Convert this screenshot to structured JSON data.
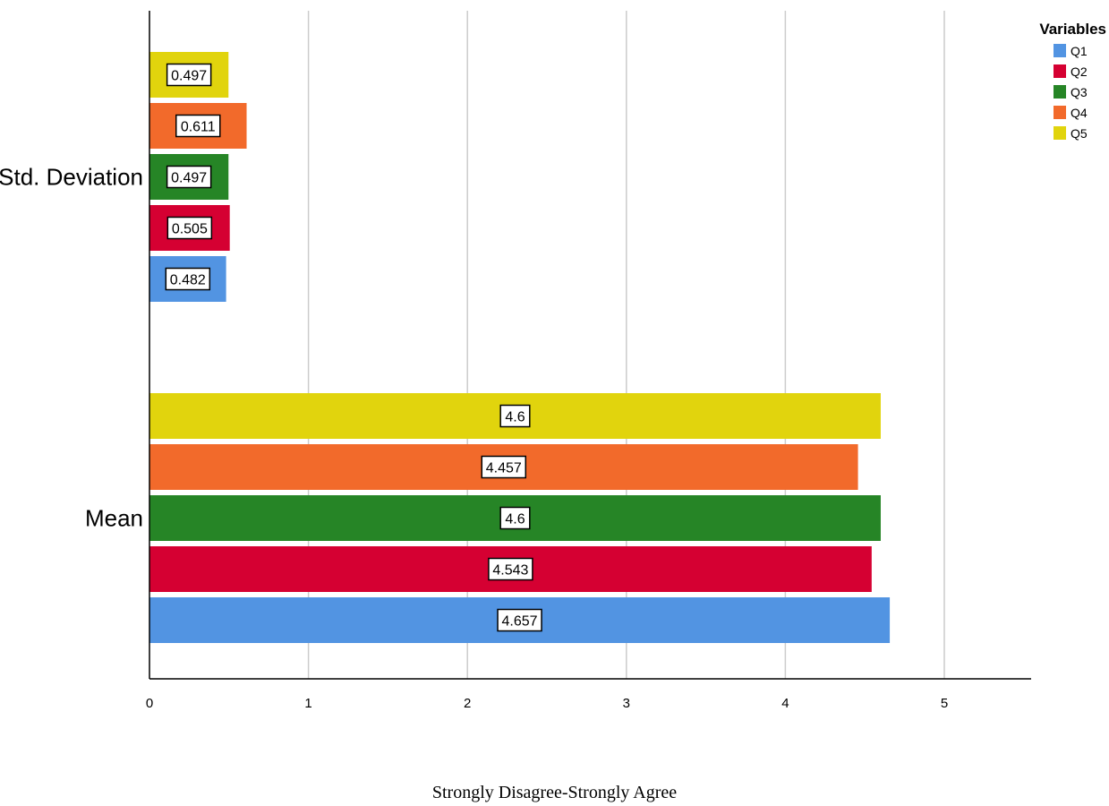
{
  "chart_data": {
    "type": "bar",
    "orientation": "horizontal",
    "categories": [
      "Std. Deviation",
      "Mean"
    ],
    "series": [
      {
        "name": "Q1",
        "color": "#5294e2",
        "values": [
          0.482,
          4.657
        ]
      },
      {
        "name": "Q2",
        "color": "#d50032",
        "values": [
          0.505,
          4.543
        ]
      },
      {
        "name": "Q3",
        "color": "#268526",
        "values": [
          0.497,
          4.6
        ]
      },
      {
        "name": "Q4",
        "color": "#f26a2b",
        "values": [
          0.611,
          4.457
        ]
      },
      {
        "name": "Q5",
        "color": "#e1d40d",
        "values": [
          0.497,
          4.6
        ]
      }
    ],
    "xlabel": "Strongly Disagree-Strongly Agree",
    "xlim": [
      0,
      5.5
    ],
    "xticks": [
      0,
      1,
      2,
      3,
      4,
      5
    ],
    "grid": "vertical",
    "legend": {
      "title": "Variables",
      "position": "top-right"
    },
    "data_labels": true
  }
}
